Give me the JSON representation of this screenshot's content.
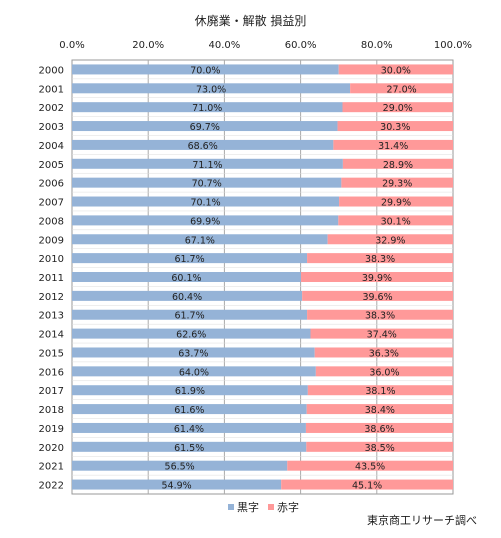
{
  "chart_data": {
    "type": "bar",
    "orientation": "horizontal",
    "stacked": true,
    "percent": true,
    "title": "休廃業・解散 損益別",
    "xlim": [
      0,
      100
    ],
    "x_ticks": [
      "0.0%",
      "20.0%",
      "40.0%",
      "60.0%",
      "80.0%",
      "100.0%"
    ],
    "categories": [
      "2000",
      "2001",
      "2002",
      "2003",
      "2004",
      "2005",
      "2006",
      "2007",
      "2008",
      "2009",
      "2010",
      "2011",
      "2012",
      "2013",
      "2014",
      "2015",
      "2016",
      "2017",
      "2018",
      "2019",
      "2020",
      "2021",
      "2022"
    ],
    "series": [
      {
        "name": "黒字",
        "color": "#95b3d7",
        "values": [
          70.0,
          73.0,
          71.0,
          69.7,
          68.6,
          71.1,
          70.7,
          70.1,
          69.9,
          67.1,
          61.7,
          60.1,
          60.4,
          61.7,
          62.6,
          63.7,
          64.0,
          61.9,
          61.6,
          61.4,
          61.5,
          56.5,
          54.9
        ],
        "labels": [
          "70.0%",
          "73.0%",
          "71.0%",
          "69.7%",
          "68.6%",
          "71.1%",
          "70.7%",
          "70.1%",
          "69.9%",
          "67.1%",
          "61.7%",
          "60.1%",
          "60.4%",
          "61.7%",
          "62.6%",
          "63.7%",
          "64.0%",
          "61.9%",
          "61.6%",
          "61.4%",
          "61.5%",
          "56.5%",
          "54.9%"
        ]
      },
      {
        "name": "赤字",
        "color": "#ff9999",
        "values": [
          30.0,
          27.0,
          29.0,
          30.3,
          31.4,
          28.9,
          29.3,
          29.9,
          30.1,
          32.9,
          38.3,
          39.9,
          39.6,
          38.3,
          37.4,
          36.3,
          36.0,
          38.1,
          38.4,
          38.6,
          38.5,
          43.5,
          45.1
        ],
        "labels": [
          "30.0%",
          "27.0%",
          "29.0%",
          "30.3%",
          "31.4%",
          "28.9%",
          "29.3%",
          "29.9%",
          "30.1%",
          "32.9%",
          "38.3%",
          "39.9%",
          "39.6%",
          "38.3%",
          "37.4%",
          "36.3%",
          "36.0%",
          "38.1%",
          "38.4%",
          "38.6%",
          "38.5%",
          "43.5%",
          "45.1%"
        ]
      }
    ],
    "grid": true,
    "legend": "bottom-center"
  },
  "source": "東京商工リサーチ調べ"
}
